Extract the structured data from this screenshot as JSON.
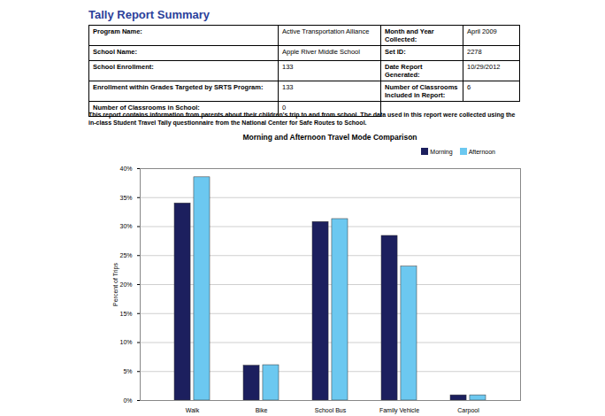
{
  "report": {
    "title": "Tally Report Summary",
    "table": {
      "rows": [
        [
          "Program Name:",
          "Active Transportation Alliance",
          "Month and Year Collected:",
          "April 2009"
        ],
        [
          "School Name:",
          "Apple River Middle School",
          "Set ID:",
          "2278"
        ],
        [
          "School Enrollment:",
          "133",
          "Date Report Generated:",
          "10/29/2012"
        ],
        [
          "Enrollment within Grades Targeted by SRTS Program:",
          "133",
          "Number of Classrooms Included in Report:",
          "6"
        ],
        [
          "Number of Classrooms in School:",
          "0"
        ]
      ]
    },
    "note": "This report contains information from parents about their children's trip to and from school. The data used in this report were collected using the in-class Student Travel Tally questionnaire from the National Center for Safe Routes to School."
  },
  "chart_data": {
    "type": "bar",
    "title": "Morning and Afternoon Travel Mode Comparison",
    "y_label": "Percent of Trips",
    "categories": [
      "Walk",
      "Bike",
      "School Bus",
      "Family Vehicle",
      "Carpool"
    ],
    "series": [
      {
        "name": "Morning",
        "color": "#1c1f5e",
        "values": [
          34.0,
          6.0,
          30.8,
          28.4,
          0.9
        ]
      },
      {
        "name": "Afternoon",
        "color": "#6cc8f0",
        "values": [
          38.5,
          6.1,
          31.3,
          23.1,
          0.9
        ]
      }
    ],
    "ylim": [
      0,
      40
    ],
    "yticks": [
      {
        "value": 0,
        "label": "0%"
      },
      {
        "value": 5,
        "label": "5%"
      },
      {
        "value": 10,
        "label": "10%"
      },
      {
        "value": 15,
        "label": "15%"
      },
      {
        "value": 20,
        "label": "20%"
      },
      {
        "value": 25,
        "label": "25%"
      },
      {
        "value": 30,
        "label": "30%"
      },
      {
        "value": 35,
        "label": "35%"
      },
      {
        "value": 40,
        "label": "40%"
      }
    ],
    "grid": true,
    "legend": "top-right"
  }
}
